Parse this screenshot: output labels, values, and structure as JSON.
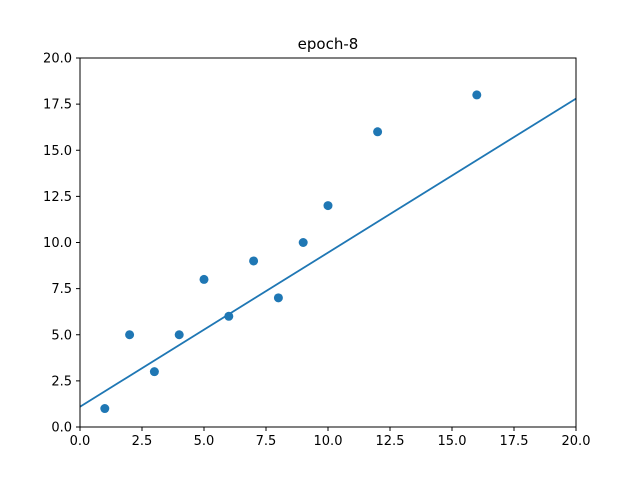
{
  "chart_data": {
    "type": "scatter",
    "title": "epoch-8",
    "xlabel": "",
    "ylabel": "",
    "xlim": [
      0,
      20
    ],
    "ylim": [
      0,
      20
    ],
    "x_ticks": [
      0,
      2.5,
      5,
      7.5,
      10,
      12.5,
      15,
      17.5,
      20
    ],
    "y_ticks": [
      0,
      2.5,
      5,
      7.5,
      10,
      12.5,
      15,
      17.5,
      20
    ],
    "x_tick_labels": [
      "0.0",
      "2.5",
      "5.0",
      "7.5",
      "10.0",
      "12.5",
      "15.0",
      "17.5",
      "20.0"
    ],
    "y_tick_labels": [
      "0.0",
      "2.5",
      "5.0",
      "7.5",
      "10.0",
      "12.5",
      "15.0",
      "17.5",
      "20.0"
    ],
    "grid": false,
    "legend": "none",
    "series": [
      {
        "kind": "scatter",
        "color": "#1f77b4",
        "x": [
          1,
          2,
          3,
          4,
          5,
          6,
          7,
          8,
          9,
          10,
          12,
          16
        ],
        "y": [
          1,
          5,
          3,
          5,
          8,
          6,
          9,
          7,
          10,
          12,
          16,
          18
        ]
      },
      {
        "kind": "line",
        "color": "#1f77b4",
        "x": [
          0,
          20
        ],
        "y": [
          1.1,
          17.8
        ]
      }
    ]
  }
}
